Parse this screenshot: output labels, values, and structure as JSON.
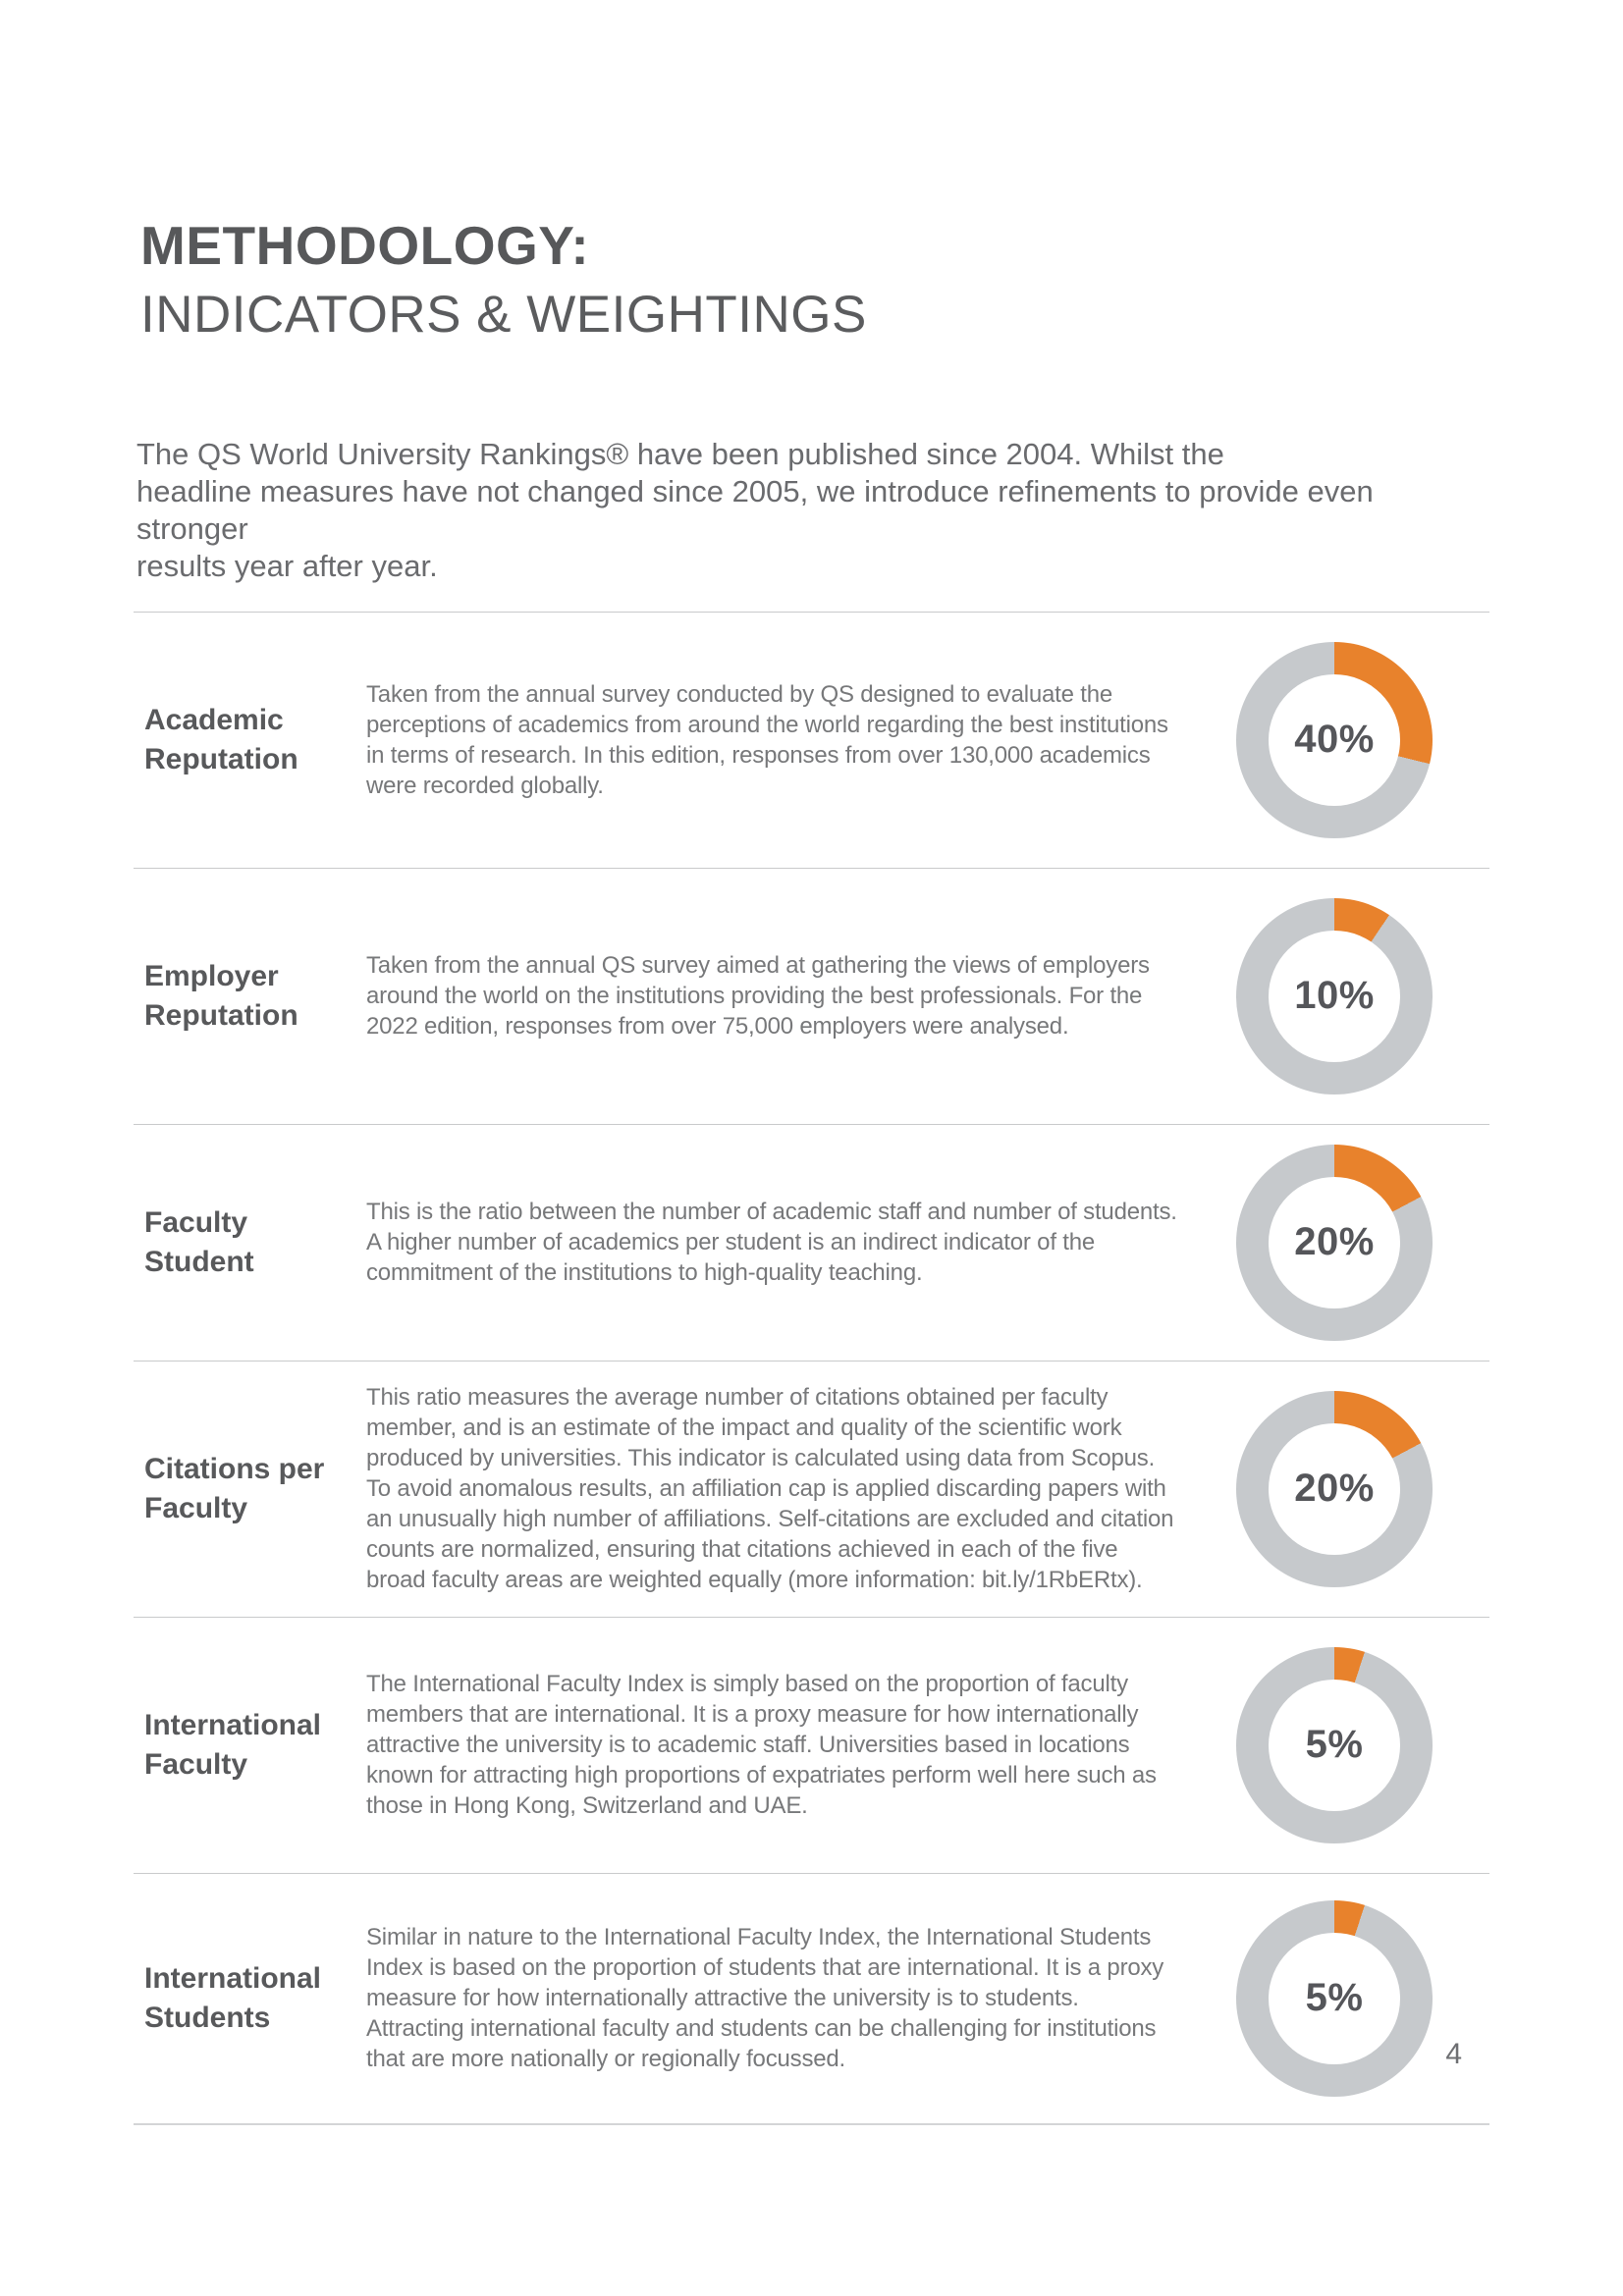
{
  "page": {
    "title_line1": "METHODOLOGY:",
    "title_line2": "INDICATORS & WEIGHTINGS",
    "intro_lines": [
      "The QS World University Rankings® have been published since 2004. Whilst the",
      "headline measures have not changed since 2005, we introduce refinements to provide even stronger",
      "results year after year."
    ],
    "page_number": "4"
  },
  "indicators": [
    {
      "label": "Academic Reputation",
      "weight": "40%",
      "description": "Taken from the annual survey conducted by QS designed to evaluate the perceptions of academics from around the world regarding the best institutions in terms of research. In this edition, responses from over 130,000 academics were recorded globally."
    },
    {
      "label": "Employer Reputation",
      "weight": "10%",
      "description": "Taken from the annual QS survey aimed at gathering the views of employers around the world on the institutions providing the best professionals. For the 2022 edition, responses from over 75,000 employers were analysed."
    },
    {
      "label": "Faculty Student",
      "weight": "20%",
      "description": "This is the ratio between the number of academic staff and number of students. A higher number of academics per student is an indirect indicator of the commitment of the institutions to high-quality teaching."
    },
    {
      "label": "Citations per Faculty",
      "weight": "20%",
      "description": "This ratio measures the average number of citations obtained per faculty member, and is an estimate of the impact and quality of the scientific work produced by universities. This indicator is calculated using data from Scopus. To avoid anomalous results, an affiliation cap is applied discarding papers with an unusually high number of affiliations. Self-citations are excluded and citation counts are normalized, ensuring that citations achieved in each of the five broad faculty areas are weighted equally (more information: bit.ly/1RbERtx)."
    },
    {
      "label": "International Faculty",
      "weight": "5%",
      "description": "The International Faculty Index is simply based on the proportion of faculty members that are international. It is a proxy measure for how internationally attractive the university is to academic staff. Universities based in locations known for attracting high proportions of expatriates perform well here such as those in Hong Kong, Switzerland and UAE."
    },
    {
      "label": "International Students",
      "weight": "5%",
      "description": "Similar in nature to the International Faculty Index, the International Students Index is based on the proportion of students that are international. It is a proxy measure for how internationally attractive the university is to students. Attracting international faculty and students can be challenging for institutions that are more nationally or regionally focussed."
    }
  ],
  "chart_data": {
    "type": "pie",
    "subtype": "donut",
    "direction": "clockwise",
    "start_angle_deg": 0,
    "series": [
      {
        "name": "Academic Reputation",
        "value": 40,
        "label": "40%",
        "arc_deg_drawn": 104
      },
      {
        "name": "Employer Reputation",
        "value": 10,
        "label": "10%",
        "arc_deg_drawn": 34
      },
      {
        "name": "Faculty Student",
        "value": 20,
        "label": "20%",
        "arc_deg_drawn": 62
      },
      {
        "name": "Citations per Faculty",
        "value": 20,
        "label": "20%",
        "arc_deg_drawn": 62
      },
      {
        "name": "International Faculty",
        "value": 5,
        "label": "5%",
        "arc_deg_drawn": 18
      },
      {
        "name": "International Students",
        "value": 5,
        "label": "5%",
        "arc_deg_drawn": 18
      }
    ],
    "colors": {
      "filled": "#E8822C",
      "remainder": "#C6C9CC"
    }
  },
  "colors": {
    "heading_text": "#57585A",
    "label_text": "#58595B",
    "body_text": "#77787A",
    "intro_text": "#6A6B6E",
    "divider": "#C9CACB",
    "donut_orange": "#E8822C",
    "donut_gray": "#C6C9CC",
    "percent_text": "#55565A",
    "background": "#FFFFFF"
  }
}
